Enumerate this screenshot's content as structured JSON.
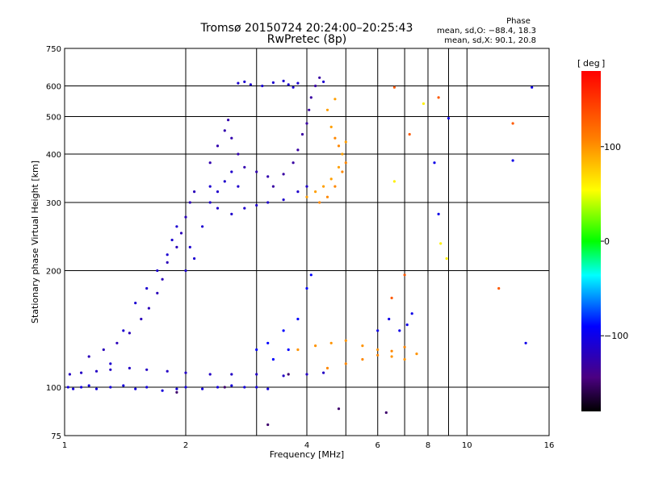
{
  "title": {
    "line1": "Tromsø 20150724 20:24:00–20:25:43",
    "line2": "RwPretec (8p)"
  },
  "phase_info": {
    "heading": "Phase",
    "line_o": "mean, sd,O: −88.4, 18.3",
    "line_x": "mean, sd,X:  90.1, 20.8"
  },
  "colorbar": {
    "label": "deg",
    "range": [
      -180,
      180
    ],
    "tick_labels": [
      "100",
      "0",
      "−100"
    ]
  },
  "chart_data": {
    "type": "scatter",
    "title": "Tromsø 20150724 20:24:00–20:25:43",
    "subtitle": "RwPretec (8p)",
    "xlabel": "Frequency [MHz]",
    "ylabel": "Stationary phase Virtual Height [km]",
    "x_scale": "log",
    "y_scale": "log",
    "xlim": [
      1,
      16
    ],
    "ylim": [
      75,
      750
    ],
    "x_ticks": [
      {
        "v": 1,
        "label": "1"
      },
      {
        "v": 2,
        "label": "2"
      },
      {
        "v": 4,
        "label": "4"
      },
      {
        "v": 6,
        "label": "6"
      },
      {
        "v": 8,
        "label": "8"
      },
      {
        "v": 10,
        "label": "10"
      },
      {
        "v": 16,
        "label": "16"
      }
    ],
    "x_minor_ticks": [
      3,
      5,
      7,
      9
    ],
    "y_ticks": [
      {
        "v": 75,
        "label": "75"
      },
      {
        "v": 100,
        "label": "100"
      },
      {
        "v": 200,
        "label": "200"
      },
      {
        "v": 300,
        "label": "300"
      },
      {
        "v": 400,
        "label": "400"
      },
      {
        "v": 500,
        "label": "500"
      },
      {
        "v": 600,
        "label": "600"
      },
      {
        "v": 750,
        "label": "750"
      }
    ],
    "grid": true,
    "colorbar_unit": "deg",
    "series": [
      {
        "phase": -105,
        "points": [
          [
            1.02,
            100
          ],
          [
            1.05,
            99
          ],
          [
            1.1,
            100
          ],
          [
            1.15,
            101
          ],
          [
            1.2,
            99
          ],
          [
            1.3,
            100
          ],
          [
            1.4,
            101
          ],
          [
            1.5,
            99
          ],
          [
            1.6,
            100
          ],
          [
            1.75,
            98
          ],
          [
            1.9,
            99
          ],
          [
            2.0,
            100
          ],
          [
            2.2,
            99
          ],
          [
            2.4,
            100
          ],
          [
            2.6,
            101
          ],
          [
            2.8,
            100
          ],
          [
            3.0,
            100
          ],
          [
            3.2,
            99
          ]
        ]
      },
      {
        "phase": -115,
        "points": [
          [
            1.03,
            108
          ],
          [
            1.1,
            109
          ],
          [
            1.2,
            110
          ],
          [
            1.3,
            111
          ],
          [
            1.45,
            112
          ],
          [
            1.6,
            111
          ],
          [
            1.8,
            110
          ],
          [
            2.0,
            109
          ],
          [
            2.3,
            108
          ],
          [
            2.6,
            108
          ],
          [
            3.0,
            108
          ],
          [
            3.5,
            107
          ],
          [
            4.0,
            108
          ],
          [
            4.4,
            109
          ]
        ]
      },
      {
        "phase": -120,
        "points": [
          [
            1.15,
            120
          ],
          [
            1.25,
            125
          ],
          [
            1.35,
            130
          ],
          [
            1.45,
            138
          ],
          [
            1.55,
            150
          ],
          [
            1.62,
            160
          ],
          [
            1.7,
            175
          ],
          [
            1.75,
            190
          ],
          [
            1.8,
            210
          ],
          [
            1.9,
            230
          ],
          [
            1.95,
            250
          ],
          [
            2.0,
            275
          ],
          [
            2.05,
            300
          ],
          [
            2.1,
            320
          ]
        ]
      },
      {
        "phase": -110,
        "points": [
          [
            1.3,
            115
          ],
          [
            1.4,
            140
          ],
          [
            1.5,
            165
          ],
          [
            1.6,
            180
          ],
          [
            1.7,
            200
          ],
          [
            1.8,
            220
          ],
          [
            1.85,
            240
          ],
          [
            1.9,
            260
          ],
          [
            2.0,
            200
          ],
          [
            2.05,
            230
          ],
          [
            2.1,
            215
          ],
          [
            2.2,
            260
          ],
          [
            2.3,
            330
          ]
        ]
      },
      {
        "phase": -112,
        "points": [
          [
            2.3,
            300
          ],
          [
            2.4,
            320
          ],
          [
            2.5,
            340
          ],
          [
            2.6,
            360
          ],
          [
            2.7,
            330
          ],
          [
            2.4,
            290
          ],
          [
            2.6,
            280
          ],
          [
            2.8,
            290
          ],
          [
            3.0,
            295
          ],
          [
            3.2,
            300
          ],
          [
            3.5,
            305
          ],
          [
            3.8,
            320
          ],
          [
            4.0,
            330
          ]
        ]
      },
      {
        "phase": -125,
        "points": [
          [
            2.3,
            380
          ],
          [
            2.4,
            420
          ],
          [
            2.5,
            460
          ],
          [
            2.55,
            490
          ],
          [
            2.6,
            440
          ],
          [
            2.7,
            400
          ],
          [
            2.8,
            370
          ],
          [
            3.0,
            360
          ],
          [
            3.2,
            350
          ]
        ]
      },
      {
        "phase": -130,
        "points": [
          [
            3.3,
            330
          ],
          [
            3.5,
            355
          ],
          [
            3.7,
            380
          ],
          [
            3.8,
            410
          ],
          [
            3.9,
            450
          ],
          [
            4.0,
            480
          ],
          [
            4.05,
            520
          ],
          [
            4.1,
            560
          ],
          [
            4.2,
            600
          ],
          [
            4.3,
            630
          ]
        ]
      },
      {
        "phase": -110,
        "points": [
          [
            2.7,
            610
          ],
          [
            2.8,
            615
          ],
          [
            2.9,
            605
          ],
          [
            3.1,
            600
          ],
          [
            3.3,
            612
          ],
          [
            3.5,
            618
          ],
          [
            3.6,
            605
          ],
          [
            3.7,
            595
          ],
          [
            3.8,
            610
          ],
          [
            4.4,
            615
          ]
        ]
      },
      {
        "phase": 95,
        "points": [
          [
            4.0,
            310
          ],
          [
            4.2,
            320
          ],
          [
            4.4,
            330
          ],
          [
            4.6,
            345
          ],
          [
            4.8,
            370
          ],
          [
            4.9,
            400
          ],
          [
            5.0,
            430
          ],
          [
            4.6,
            470
          ],
          [
            4.5,
            520
          ],
          [
            4.7,
            555
          ]
        ]
      },
      {
        "phase": 105,
        "points": [
          [
            4.3,
            300
          ],
          [
            4.5,
            310
          ],
          [
            4.7,
            330
          ],
          [
            4.9,
            360
          ],
          [
            5.0,
            380
          ],
          [
            4.8,
            420
          ],
          [
            4.7,
            440
          ]
        ]
      },
      {
        "phase": 100,
        "points": [
          [
            3.8,
            125
          ],
          [
            4.2,
            128
          ],
          [
            4.6,
            130
          ],
          [
            5.0,
            132
          ],
          [
            5.5,
            128
          ],
          [
            6.0,
            125
          ],
          [
            6.5,
            120
          ],
          [
            7.0,
            118
          ],
          [
            7.5,
            122
          ]
        ]
      },
      {
        "phase": 105,
        "points": [
          [
            4.5,
            112
          ],
          [
            5.0,
            115
          ],
          [
            5.5,
            118
          ],
          [
            6.0,
            121
          ],
          [
            6.5,
            124
          ],
          [
            7.0,
            127
          ]
        ]
      },
      {
        "phase": -90,
        "points": [
          [
            3.0,
            125
          ],
          [
            3.2,
            130
          ],
          [
            3.5,
            140
          ],
          [
            3.8,
            150
          ],
          [
            4.0,
            180
          ],
          [
            4.1,
            195
          ],
          [
            3.6,
            125
          ],
          [
            3.3,
            118
          ]
        ]
      },
      {
        "phase": 130,
        "points": [
          [
            6.6,
            595
          ],
          [
            7.2,
            450
          ],
          [
            8.5,
            560
          ],
          [
            13.0,
            480
          ],
          [
            12.0,
            180
          ],
          [
            6.5,
            170
          ],
          [
            7.0,
            195
          ]
        ]
      },
      {
        "phase": -100,
        "points": [
          [
            6.0,
            140
          ],
          [
            6.4,
            150
          ],
          [
            6.8,
            140
          ],
          [
            7.1,
            145
          ],
          [
            7.3,
            155
          ],
          [
            8.3,
            380
          ],
          [
            8.5,
            280
          ],
          [
            9.0,
            495
          ],
          [
            14.0,
            130
          ],
          [
            14.5,
            595
          ],
          [
            13.0,
            385
          ]
        ]
      },
      {
        "phase": 60,
        "points": [
          [
            8.6,
            235
          ],
          [
            8.9,
            215
          ],
          [
            7.8,
            540
          ],
          [
            6.6,
            340
          ]
        ]
      },
      {
        "phase": -150,
        "points": [
          [
            2.5,
            100
          ],
          [
            3.2,
            80
          ],
          [
            4.8,
            88
          ],
          [
            6.3,
            86
          ],
          [
            1.9,
            97
          ],
          [
            3.6,
            108
          ]
        ]
      }
    ]
  }
}
